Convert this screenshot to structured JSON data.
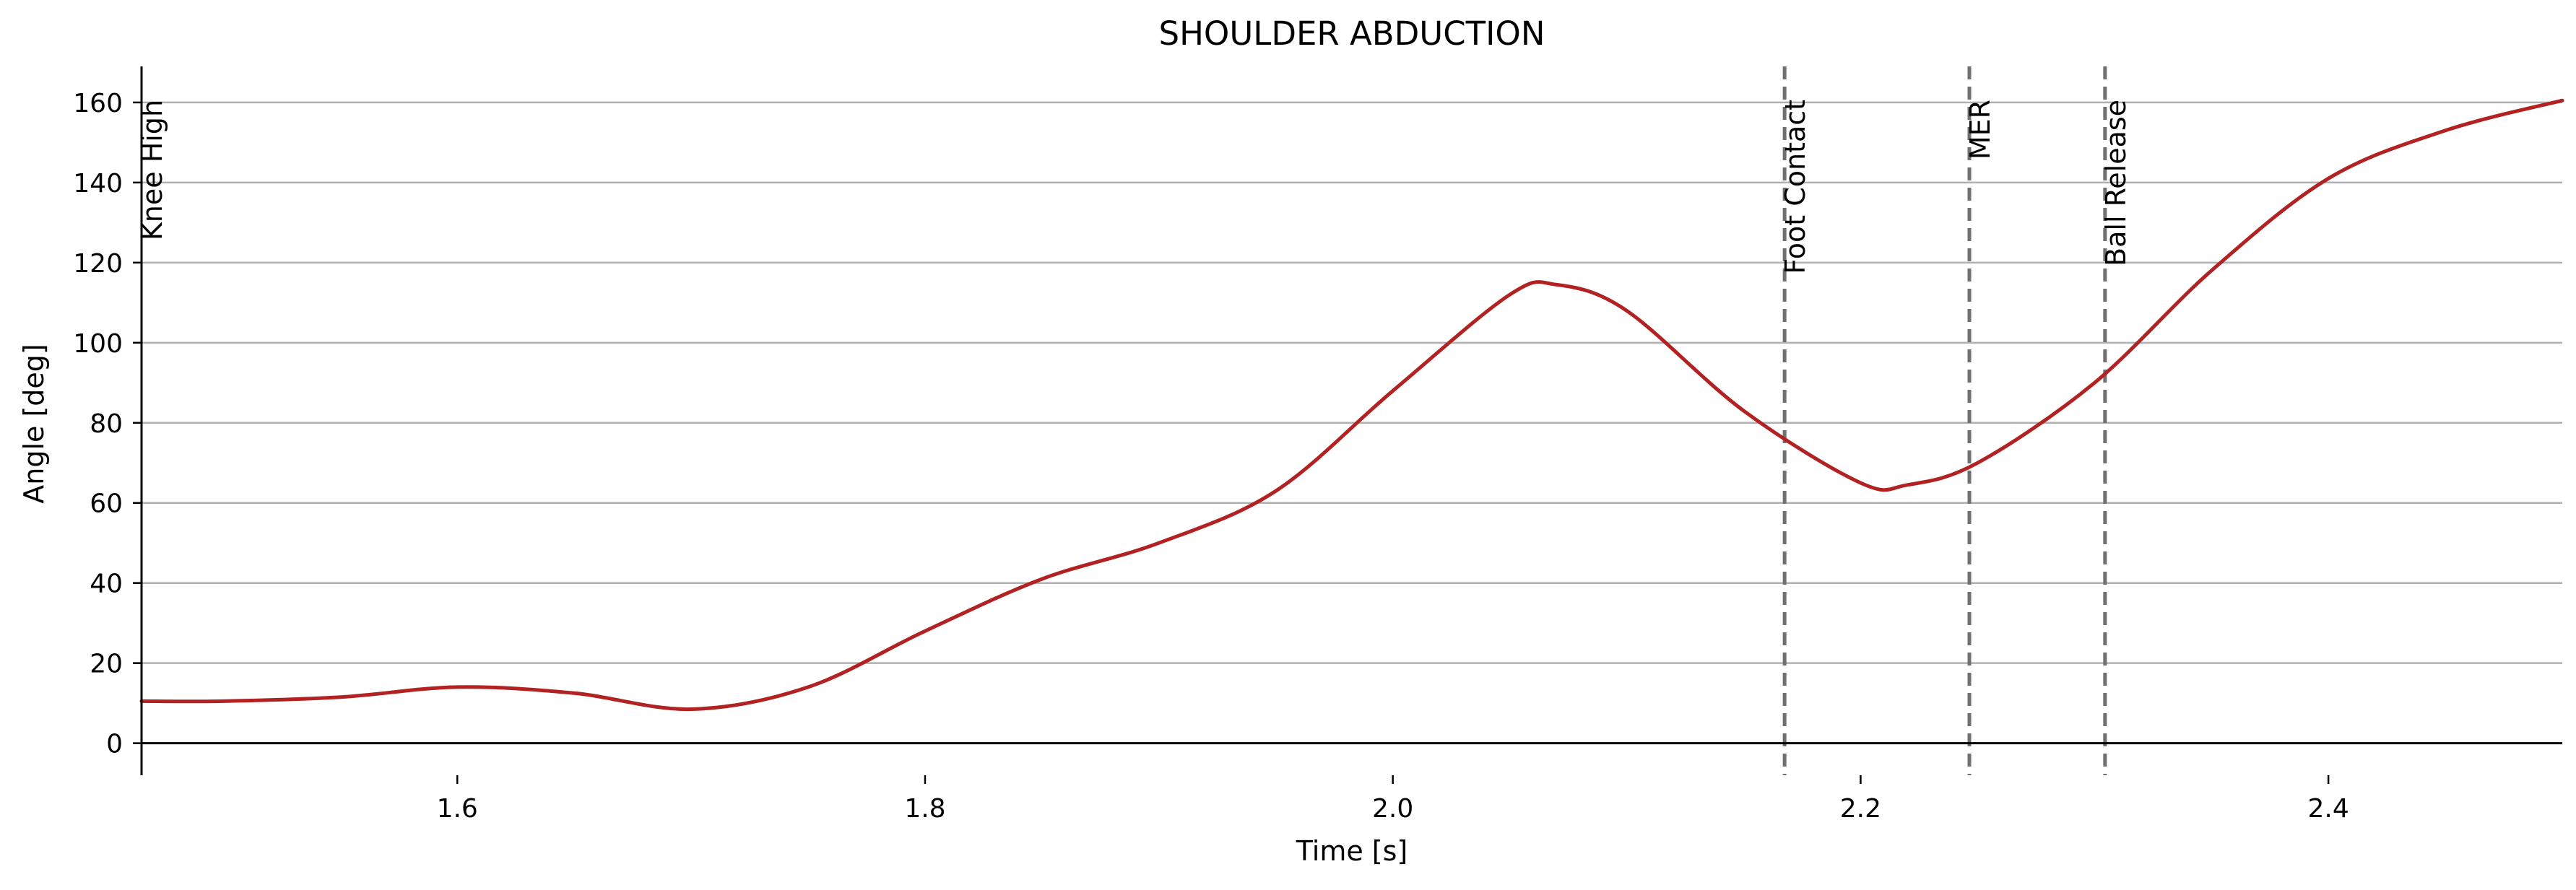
{
  "chart_data": {
    "type": "line",
    "title": "SHOULDER ABDUCTION",
    "xlabel": "Time [s]",
    "ylabel": "Angle [deg]",
    "xlim": [
      1.465,
      2.5
    ],
    "ylim": [
      -8,
      169
    ],
    "x_ticks": [
      1.6,
      1.8,
      2.0,
      2.2,
      2.4
    ],
    "x_tick_labels": [
      "1.6",
      "1.8",
      "2.0",
      "2.2",
      "2.4"
    ],
    "y_ticks": [
      0,
      20,
      40,
      60,
      80,
      100,
      120,
      140,
      160
    ],
    "y_tick_labels": [
      "0",
      "20",
      "40",
      "60",
      "80",
      "100",
      "120",
      "140",
      "160"
    ],
    "grid": "horizontal",
    "legend": "none",
    "series": [
      {
        "color": "#b22222",
        "x": [
          1.465,
          1.5,
          1.55,
          1.6,
          1.65,
          1.7,
          1.75,
          1.8,
          1.85,
          1.9,
          1.95,
          2.0,
          2.05,
          2.07,
          2.1,
          2.15,
          2.2,
          2.22,
          2.25,
          2.3,
          2.35,
          2.4,
          2.45,
          2.5
        ],
        "y": [
          10.5,
          10.5,
          11.5,
          14.0,
          12.5,
          8.5,
          14.0,
          28.0,
          41.0,
          50.0,
          63.0,
          88.0,
          112.0,
          114.5,
          108.0,
          83.0,
          65.0,
          64.5,
          70.0,
          90.0,
          118.0,
          141.0,
          153.0,
          160.5
        ]
      }
    ],
    "events": [
      {
        "label": "Knee High",
        "x": 1.465
      },
      {
        "label": "Foot Contact",
        "x": 2.1675
      },
      {
        "label": "MER",
        "x": 2.2465
      },
      {
        "label": "Ball Release",
        "x": 2.3045
      }
    ]
  }
}
